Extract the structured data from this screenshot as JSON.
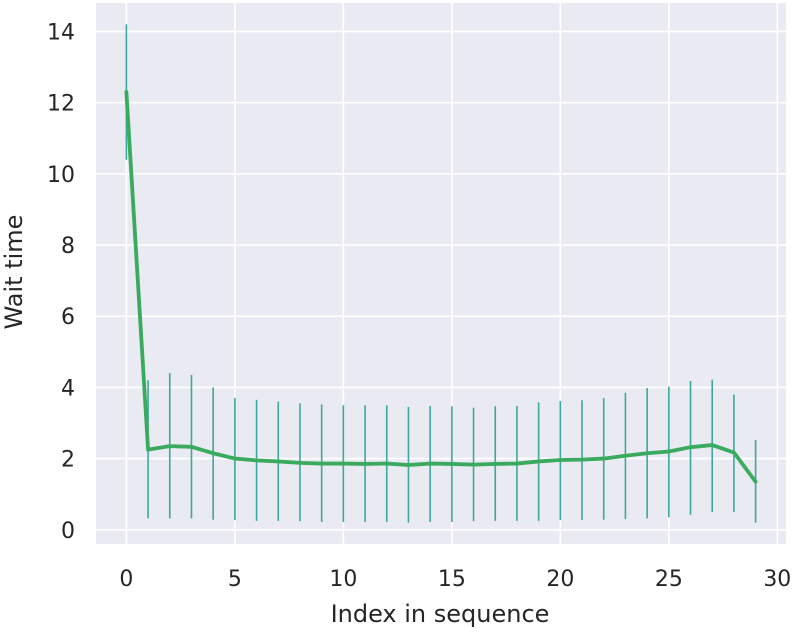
{
  "chart_data": {
    "type": "line",
    "xlabel": "Index in sequence",
    "ylabel": "Wait time",
    "xlim": [
      -1.4,
      30.4
    ],
    "ylim": [
      -0.4,
      14.8
    ],
    "xticks": [
      0,
      5,
      10,
      15,
      20,
      25,
      30
    ],
    "xtick_labels": [
      "0",
      "5",
      "10",
      "15",
      "20",
      "25",
      "30"
    ],
    "yticks": [
      0,
      2,
      4,
      6,
      8,
      10,
      12,
      14
    ],
    "ytick_labels": [
      "0",
      "2",
      "4",
      "6",
      "8",
      "10",
      "12",
      "14"
    ],
    "grid": true,
    "background": "#eaeaf2",
    "line_color": "#3aab5e",
    "errorbar_color": "#3ba99c",
    "series": [
      {
        "x": [
          0,
          1,
          2,
          3,
          4,
          5,
          6,
          7,
          8,
          9,
          10,
          11,
          12,
          13,
          14,
          15,
          16,
          17,
          18,
          19,
          20,
          21,
          22,
          23,
          24,
          25,
          26,
          27,
          28,
          29
        ],
        "y": [
          12.3,
          2.25,
          2.35,
          2.33,
          2.15,
          2.0,
          1.95,
          1.92,
          1.88,
          1.86,
          1.86,
          1.85,
          1.86,
          1.82,
          1.86,
          1.85,
          1.83,
          1.85,
          1.86,
          1.92,
          1.96,
          1.97,
          2.0,
          2.08,
          2.15,
          2.2,
          2.32,
          2.38,
          2.17,
          1.35
        ],
        "ylow": [
          10.4,
          0.32,
          0.32,
          0.32,
          0.28,
          0.27,
          0.25,
          0.25,
          0.24,
          0.22,
          0.22,
          0.22,
          0.22,
          0.2,
          0.22,
          0.22,
          0.24,
          0.25,
          0.25,
          0.25,
          0.27,
          0.27,
          0.28,
          0.3,
          0.32,
          0.35,
          0.42,
          0.5,
          0.5,
          0.2
        ],
        "yhigh": [
          14.2,
          4.2,
          4.4,
          4.35,
          4.0,
          3.7,
          3.65,
          3.6,
          3.55,
          3.52,
          3.5,
          3.5,
          3.5,
          3.45,
          3.48,
          3.47,
          3.43,
          3.47,
          3.48,
          3.58,
          3.62,
          3.64,
          3.7,
          3.85,
          3.98,
          4.02,
          4.18,
          4.22,
          3.8,
          2.52
        ]
      }
    ]
  }
}
